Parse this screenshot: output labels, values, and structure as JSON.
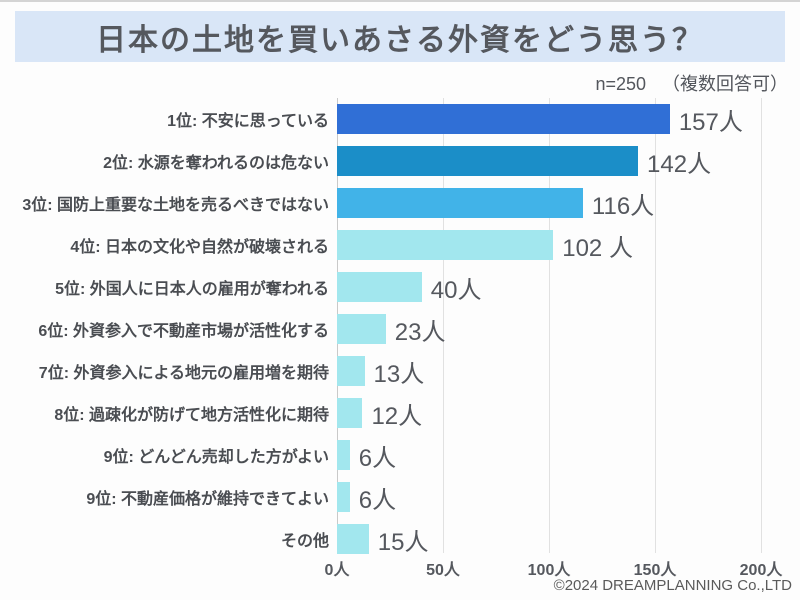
{
  "header": {
    "title": "日本の土地を買いあさる外資をどう思う？",
    "sample_label": "n=250",
    "note": "（複数回答可）",
    "banner_color": "#d9e6f7"
  },
  "chart_data": {
    "type": "bar",
    "orientation": "horizontal",
    "title": "日本の土地を買いあさる外資をどう思う？",
    "sample_size": 250,
    "categories": [
      "1位: 不安に思っている",
      "2位: 水源を奪われるのは危ない",
      "3位: 国防上重要な土地を売るべきではない",
      "4位: 日本の文化や自然が破壊される",
      "5位: 外国人に日本人の雇用が奪われる",
      "6位: 外資参入で不動産市場が活性化する",
      "7位: 外資参入による地元の雇用増を期待",
      "8位: 過疎化が防げて地方活性化に期待",
      "9位: どんどん売却した方がよい",
      "9位: 不動産価格が維持できてよい",
      "その他"
    ],
    "values": [
      157,
      142,
      116,
      102,
      40,
      23,
      13,
      12,
      6,
      6,
      15
    ],
    "value_labels": [
      "157人",
      "142人",
      "116人",
      "102 人",
      "40人",
      "23人",
      "13人",
      "12人",
      "6人",
      "6人",
      "15人"
    ],
    "bar_colors": [
      "#306fd6",
      "#1b8ec8",
      "#41b3e8",
      "#a2e7ee",
      "#a2e7ee",
      "#a2e7ee",
      "#a2e7ee",
      "#a2e7ee",
      "#a2e7ee",
      "#a2e7ee",
      "#a2e7ee"
    ],
    "x_ticks": [
      "0人",
      "50人",
      "100人",
      "150人",
      "200人"
    ],
    "xlabel": "",
    "ylabel": "",
    "xlim": [
      0,
      200
    ],
    "grid": "vertical",
    "legend": "none"
  },
  "footer": {
    "copyright": "©2024 DREAMPLANNING Co.,LTD"
  }
}
